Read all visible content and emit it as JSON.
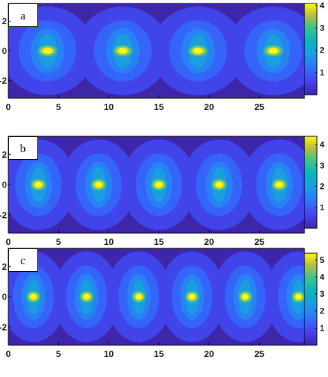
{
  "chart_data": [
    {
      "type": "heatmap",
      "panel_label": "a",
      "xlim": [
        0,
        29.5
      ],
      "ylim": [
        -3.2,
        3.2
      ],
      "x_ticks": [
        0,
        5,
        10,
        15,
        20,
        25
      ],
      "y_ticks": [
        2,
        0,
        -2
      ],
      "x_tick_labels": [
        "0",
        "5",
        "10",
        "15",
        "20",
        "25"
      ],
      "y_tick_labels": [
        "2",
        "0",
        "-2"
      ],
      "peak_y": 0,
      "peaks_x": [
        3.9,
        11.4,
        18.9,
        26.4
      ],
      "peak_value": 4,
      "colorbar_tick_labels": [
        "4",
        "3",
        "2",
        "1"
      ],
      "colorbar_tick_values": [
        4,
        3,
        2,
        1
      ],
      "colorbar_range": [
        0,
        4.1
      ],
      "colormap": "parula"
    },
    {
      "type": "heatmap",
      "panel_label": "b",
      "xlim": [
        0,
        29.5
      ],
      "ylim": [
        -3.2,
        3.2
      ],
      "x_ticks": [
        0,
        5,
        10,
        15,
        20,
        25
      ],
      "y_ticks": [
        2,
        0,
        -2
      ],
      "x_tick_labels": [
        "0",
        "5",
        "10",
        "15",
        "20",
        "25"
      ],
      "y_tick_labels": [
        "2",
        "0",
        "-2"
      ],
      "peak_y": 0,
      "peaks_x": [
        3.0,
        9.0,
        15.0,
        21.0,
        27.0
      ],
      "peak_value": 4.2,
      "colorbar_tick_labels": [
        "4",
        "3",
        "2",
        "1"
      ],
      "colorbar_tick_values": [
        4,
        3,
        2,
        1
      ],
      "colorbar_range": [
        0,
        4.4
      ],
      "colormap": "parula"
    },
    {
      "type": "heatmap",
      "panel_label": "c",
      "xlim": [
        0,
        29.5
      ],
      "ylim": [
        -3.2,
        3.2
      ],
      "x_ticks": [
        0,
        5,
        10,
        15,
        20,
        25
      ],
      "y_ticks": [
        2,
        0,
        -2
      ],
      "x_tick_labels": [
        "0",
        "5",
        "10",
        "15",
        "20",
        "25"
      ],
      "y_tick_labels": [
        "2",
        "0",
        "-2"
      ],
      "peak_y": 0,
      "peaks_x": [
        2.5,
        7.8,
        13.0,
        18.3,
        23.6,
        28.9
      ],
      "peak_value": 5.3,
      "colorbar_tick_labels": [
        "5",
        "4",
        "3",
        "2",
        "1"
      ],
      "colorbar_tick_values": [
        5,
        4,
        3,
        2,
        1
      ],
      "colorbar_range": [
        0,
        5.4
      ],
      "colormap": "parula"
    }
  ]
}
